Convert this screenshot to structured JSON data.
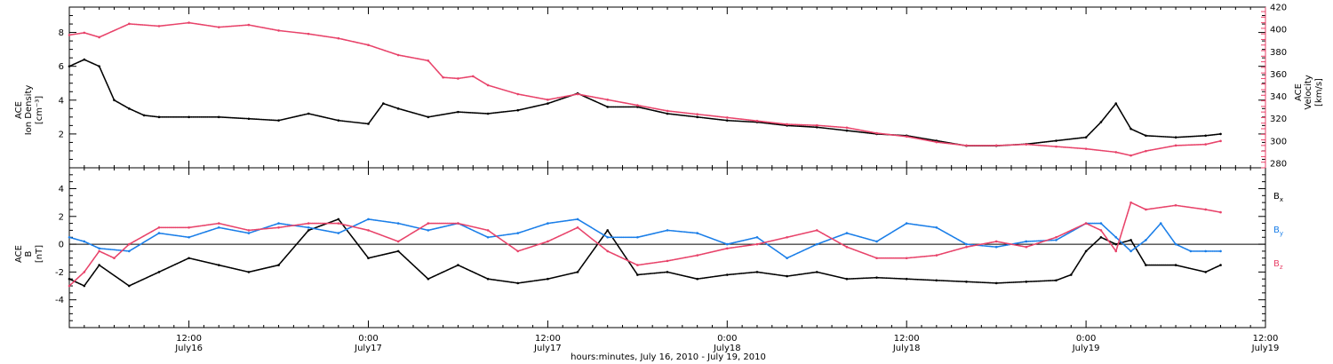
{
  "chart_data": [
    {
      "type": "scatter",
      "panel": "top",
      "xlabel": "hours:minutes, July 16, 2010 - July 19, 2010",
      "x_ticks": [
        {
          "hours": 12,
          "time": "12:00",
          "date": "July16"
        },
        {
          "hours": 24,
          "time": "0:00",
          "date": "July17"
        },
        {
          "hours": 36,
          "time": "12:00",
          "date": "July17"
        },
        {
          "hours": 48,
          "time": "0:00",
          "date": "July18"
        },
        {
          "hours": 60,
          "time": "12:00",
          "date": "July18"
        },
        {
          "hours": 72,
          "time": "0:00",
          "date": "July19"
        },
        {
          "hours": 84,
          "time": "12:00",
          "date": "July19"
        }
      ],
      "x_range_hours": [
        4,
        84
      ],
      "left_axis": {
        "label_lines": [
          "ACE",
          "Ion Density",
          "[cm⁻³]"
        ],
        "ylim": [
          0,
          9.5
        ],
        "ticks": [
          2,
          4,
          6,
          8
        ],
        "color": "#000000"
      },
      "right_axis": {
        "label_lines": [
          "ACE",
          "Velocity",
          "[km/s]"
        ],
        "ylim": [
          276,
          420
        ],
        "ticks": [
          280,
          300,
          320,
          340,
          360,
          380,
          400,
          420
        ],
        "color": "#e8436a"
      },
      "series": [
        {
          "name": "Ion Density",
          "axis": "left",
          "color": "#000000",
          "x": [
            4,
            5,
            6,
            7,
            8,
            9,
            10,
            12,
            14,
            16,
            18,
            20,
            22,
            24,
            25,
            26,
            28,
            30,
            32,
            34,
            36,
            38,
            40,
            42,
            44,
            46,
            48,
            50,
            52,
            54,
            56,
            58,
            60,
            62,
            64,
            66,
            68,
            70,
            72,
            73,
            74,
            75,
            76,
            78,
            80,
            81
          ],
          "y": [
            6.0,
            6.4,
            6.0,
            4.0,
            3.5,
            3.1,
            3.0,
            3.0,
            3.0,
            2.9,
            2.8,
            3.2,
            2.8,
            2.6,
            3.8,
            3.5,
            3.0,
            3.3,
            3.2,
            3.4,
            3.8,
            4.4,
            3.6,
            3.6,
            3.2,
            3.0,
            2.8,
            2.7,
            2.5,
            2.4,
            2.2,
            2.0,
            1.9,
            1.6,
            1.3,
            1.3,
            1.4,
            1.6,
            1.8,
            2.7,
            3.8,
            2.3,
            1.9,
            1.8,
            1.9,
            2.0
          ]
        },
        {
          "name": "Velocity",
          "axis": "right",
          "color": "#e8436a",
          "x": [
            4,
            5,
            6,
            8,
            10,
            12,
            14,
            16,
            18,
            20,
            22,
            24,
            26,
            28,
            29,
            30,
            31,
            32,
            34,
            36,
            38,
            40,
            42,
            44,
            46,
            48,
            50,
            52,
            54,
            56,
            58,
            60,
            62,
            64,
            66,
            68,
            70,
            72,
            74,
            75,
            76,
            78,
            80,
            81
          ],
          "y": [
            395,
            397,
            393,
            405,
            403,
            406,
            402,
            404,
            399,
            396,
            392,
            386,
            377,
            372,
            357,
            356,
            358,
            350,
            342,
            337,
            342,
            337,
            332,
            327,
            324,
            321,
            318,
            315,
            314,
            312,
            307,
            304,
            299,
            296,
            296,
            297,
            295,
            293,
            290,
            287,
            291,
            296,
            297,
            300
          ]
        }
      ]
    },
    {
      "type": "scatter",
      "panel": "bottom",
      "x_range_hours": [
        4,
        84
      ],
      "left_axis": {
        "label_lines": [
          "ACE",
          "B",
          "[nT]"
        ],
        "ylim": [
          -6,
          5.5
        ],
        "ticks": [
          -4,
          -2,
          0,
          2,
          4
        ],
        "color": "#000000"
      },
      "zero_line": true,
      "legend": {
        "placement": "right",
        "items": [
          {
            "label": "B",
            "subscript": "x",
            "color": "#000000"
          },
          {
            "label": "B",
            "subscript": "y",
            "color": "#1a7ee8"
          },
          {
            "label": "B",
            "subscript": "z",
            "color": "#e8436a"
          }
        ]
      },
      "series": [
        {
          "name": "Bx",
          "color": "#000000",
          "x": [
            4,
            5,
            6,
            8,
            10,
            12,
            14,
            16,
            18,
            20,
            22,
            24,
            26,
            28,
            30,
            32,
            34,
            36,
            38,
            40,
            42,
            44,
            46,
            48,
            50,
            52,
            54,
            56,
            58,
            60,
            62,
            64,
            66,
            68,
            70,
            71,
            72,
            73,
            74,
            75,
            76,
            78,
            80,
            81
          ],
          "y": [
            -2.5,
            -3.0,
            -1.5,
            -3.0,
            -2.0,
            -1.0,
            -1.5,
            -2.0,
            -1.5,
            1.0,
            1.8,
            -1.0,
            -0.5,
            -2.5,
            -1.5,
            -2.5,
            -2.8,
            -2.5,
            -2.0,
            1.0,
            -2.2,
            -2.0,
            -2.5,
            -2.2,
            -2.0,
            -2.3,
            -2.0,
            -2.5,
            -2.4,
            -2.5,
            -2.6,
            -2.7,
            -2.8,
            -2.7,
            -2.6,
            -2.2,
            -0.5,
            0.5,
            0.0,
            0.3,
            -1.5,
            -1.5,
            -2.0,
            -1.5
          ]
        },
        {
          "name": "By",
          "color": "#1a7ee8",
          "x": [
            4,
            5,
            6,
            8,
            10,
            12,
            14,
            16,
            18,
            20,
            22,
            24,
            26,
            28,
            30,
            32,
            34,
            36,
            38,
            40,
            42,
            44,
            46,
            48,
            50,
            52,
            54,
            56,
            58,
            60,
            62,
            64,
            66,
            68,
            70,
            72,
            73,
            74,
            75,
            76,
            77,
            78,
            79,
            80,
            81
          ],
          "y": [
            0.5,
            0.2,
            -0.3,
            -0.5,
            0.8,
            0.5,
            1.2,
            0.8,
            1.5,
            1.2,
            0.8,
            1.8,
            1.5,
            1.0,
            1.5,
            0.5,
            0.8,
            1.5,
            1.8,
            0.5,
            0.5,
            1.0,
            0.8,
            0.0,
            0.5,
            -1.0,
            0.0,
            0.8,
            0.2,
            1.5,
            1.2,
            0.0,
            -0.2,
            0.2,
            0.3,
            1.5,
            1.5,
            0.5,
            -0.5,
            0.3,
            1.5,
            0.0,
            -0.5,
            -0.5,
            -0.5
          ]
        },
        {
          "name": "Bz",
          "color": "#e8436a",
          "x": [
            4,
            5,
            6,
            7,
            8,
            10,
            12,
            14,
            16,
            18,
            20,
            22,
            24,
            26,
            28,
            30,
            32,
            34,
            36,
            38,
            40,
            42,
            44,
            46,
            48,
            50,
            52,
            54,
            56,
            58,
            60,
            62,
            64,
            66,
            68,
            70,
            72,
            73,
            74,
            75,
            76,
            78,
            80,
            81
          ],
          "y": [
            -3.0,
            -2.0,
            -0.5,
            -1.0,
            0.0,
            1.2,
            1.2,
            1.5,
            1.0,
            1.2,
            1.5,
            1.5,
            1.0,
            0.2,
            1.5,
            1.5,
            1.0,
            -0.5,
            0.2,
            1.2,
            -0.5,
            -1.5,
            -1.2,
            -0.8,
            -0.3,
            0.0,
            0.5,
            1.0,
            -0.2,
            -1.0,
            -1.0,
            -0.8,
            -0.2,
            0.2,
            -0.2,
            0.5,
            1.5,
            1.0,
            -0.5,
            3.0,
            2.5,
            2.8,
            2.5,
            2.3
          ]
        }
      ]
    }
  ]
}
